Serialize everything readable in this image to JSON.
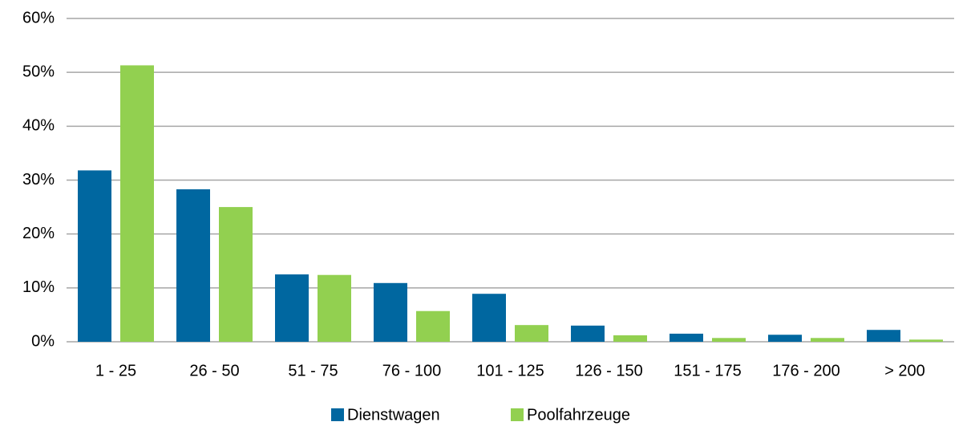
{
  "chart_data": {
    "type": "bar",
    "categories": [
      "1 - 25",
      "26 - 50",
      "51 - 75",
      "76 - 100",
      "101 - 125",
      "126 - 150",
      "151 - 175",
      "176 - 200",
      "> 200"
    ],
    "series": [
      {
        "name": "Dienstwagen",
        "color": "#0067a0",
        "values": [
          31.8,
          28.3,
          12.5,
          10.9,
          8.9,
          3.0,
          1.5,
          1.3,
          2.2
        ]
      },
      {
        "name": "Poolfahrzeuge",
        "color": "#92d050",
        "values": [
          51.3,
          25.0,
          12.4,
          5.7,
          3.1,
          1.2,
          0.7,
          0.7,
          0.4
        ]
      }
    ],
    "ylim": [
      0,
      60
    ],
    "yticks": [
      {
        "value": 0,
        "label": "0%"
      },
      {
        "value": 10,
        "label": "10%"
      },
      {
        "value": 20,
        "label": "20%"
      },
      {
        "value": 30,
        "label": "30%"
      },
      {
        "value": 40,
        "label": "40%"
      },
      {
        "value": 50,
        "label": "50%"
      },
      {
        "value": 60,
        "label": "60%"
      }
    ],
    "grid": true,
    "legend": "bottom"
  }
}
